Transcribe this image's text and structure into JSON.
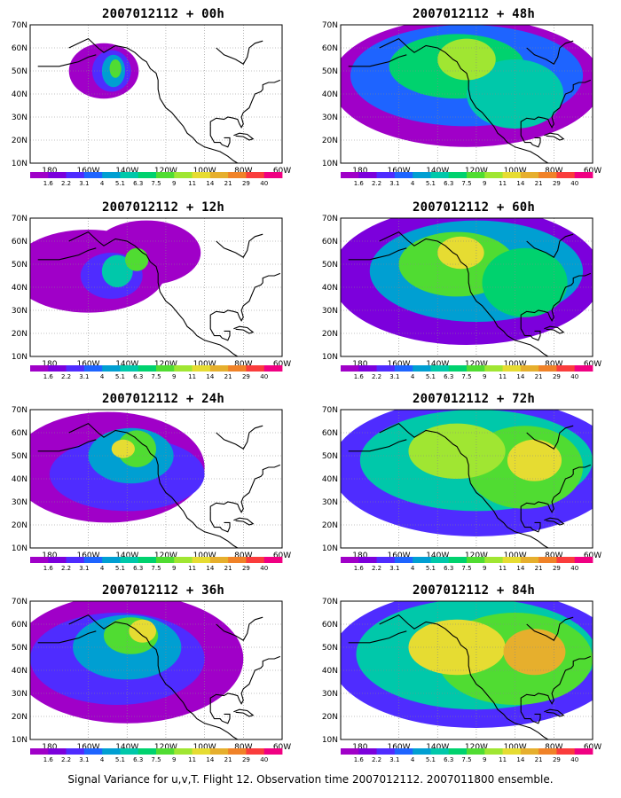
{
  "caption": "Signal Variance for u,v,T. Flight 12. Observation time 2007012112. 2007011800 ensemble.",
  "axes": {
    "lat_labels": [
      "70N",
      "60N",
      "50N",
      "40N",
      "30N",
      "20N",
      "10N"
    ],
    "lon_labels": [
      "180",
      "160W",
      "140W",
      "120W",
      "100W",
      "80W",
      "60W"
    ]
  },
  "colorbar": {
    "levels": [
      "1.6",
      "2.2",
      "3.1",
      "4",
      "5.1",
      "6.3",
      "7.5",
      "9",
      "11",
      "14",
      "21",
      "29",
      "40"
    ],
    "colors": [
      "#a000c8",
      "#7c00dc",
      "#4f2cff",
      "#1e64ff",
      "#009fd2",
      "#00c8aa",
      "#00d26e",
      "#50dc32",
      "#a0e632",
      "#e6dc32",
      "#e6af2d",
      "#f08228",
      "#fa3c3c",
      "#f00082"
    ]
  },
  "panels": [
    {
      "title": "2007012112 + 00h",
      "lead_hours": 0
    },
    {
      "title": "2007012112 + 48h",
      "lead_hours": 48
    },
    {
      "title": "2007012112 + 12h",
      "lead_hours": 12
    },
    {
      "title": "2007012112 + 60h",
      "lead_hours": 60
    },
    {
      "title": "2007012112 + 24h",
      "lead_hours": 24
    },
    {
      "title": "2007012112 + 72h",
      "lead_hours": 72
    },
    {
      "title": "2007012112 + 36h",
      "lead_hours": 36
    },
    {
      "title": "2007012112 + 84h",
      "lead_hours": 84
    }
  ]
}
